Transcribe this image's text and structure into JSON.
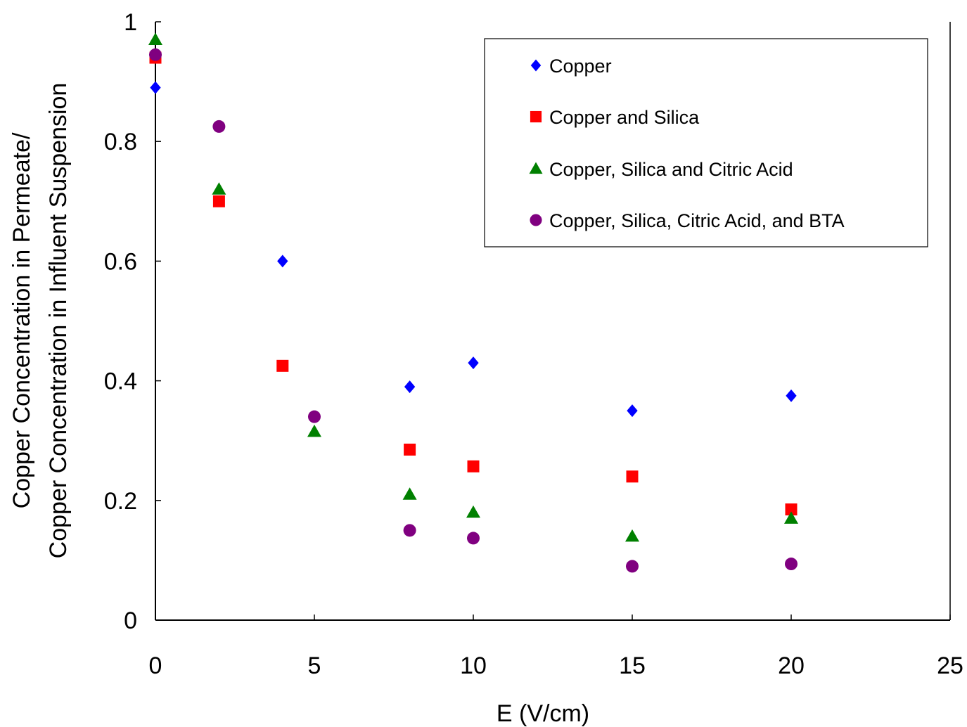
{
  "chart_data": {
    "type": "scatter",
    "xlabel": "E (V/cm)",
    "ylabel_lines": [
      "Copper Concentration in Permeate/",
      "Copper Concentration in Influent Suspension"
    ],
    "xlim": [
      0,
      25
    ],
    "ylim": [
      0,
      1
    ],
    "x_ticks": [
      0,
      5,
      10,
      15,
      20,
      25
    ],
    "y_ticks": [
      0,
      0.2,
      0.4,
      0.6,
      0.8,
      1
    ],
    "x_tick_labels": [
      "0",
      "5",
      "10",
      "15",
      "20",
      "25"
    ],
    "y_tick_labels": [
      "0",
      "0.2",
      "0.4",
      "0.6",
      "0.8",
      "1"
    ],
    "grid": false,
    "legend_position": "top-right",
    "series": [
      {
        "name": "Copper",
        "marker": "diamond",
        "color": "#0000FF",
        "points": [
          [
            0,
            0.89
          ],
          [
            4,
            0.6
          ],
          [
            8,
            0.39
          ],
          [
            10,
            0.43
          ],
          [
            15,
            0.35
          ],
          [
            20,
            0.375
          ]
        ]
      },
      {
        "name": "Copper and Silica",
        "marker": "square",
        "color": "#FF0000",
        "points": [
          [
            0,
            0.94
          ],
          [
            2,
            0.7
          ],
          [
            4,
            0.425
          ],
          [
            8,
            0.285
          ],
          [
            10,
            0.257
          ],
          [
            15,
            0.24
          ],
          [
            20,
            0.185
          ]
        ]
      },
      {
        "name": "Copper, Silica and Citric Acid",
        "marker": "triangle",
        "color": "#008000",
        "points": [
          [
            0,
            0.97
          ],
          [
            2,
            0.72
          ],
          [
            5,
            0.315
          ],
          [
            8,
            0.21
          ],
          [
            10,
            0.18
          ],
          [
            15,
            0.14
          ],
          [
            20,
            0.17
          ]
        ]
      },
      {
        "name": "Copper, Silica, Citric Acid, and BTA",
        "marker": "circle",
        "color": "#800080",
        "points": [
          [
            0,
            0.945
          ],
          [
            2,
            0.825
          ],
          [
            5,
            0.34
          ],
          [
            8,
            0.15
          ],
          [
            10,
            0.137
          ],
          [
            15,
            0.09
          ],
          [
            20,
            0.094
          ]
        ]
      }
    ]
  }
}
